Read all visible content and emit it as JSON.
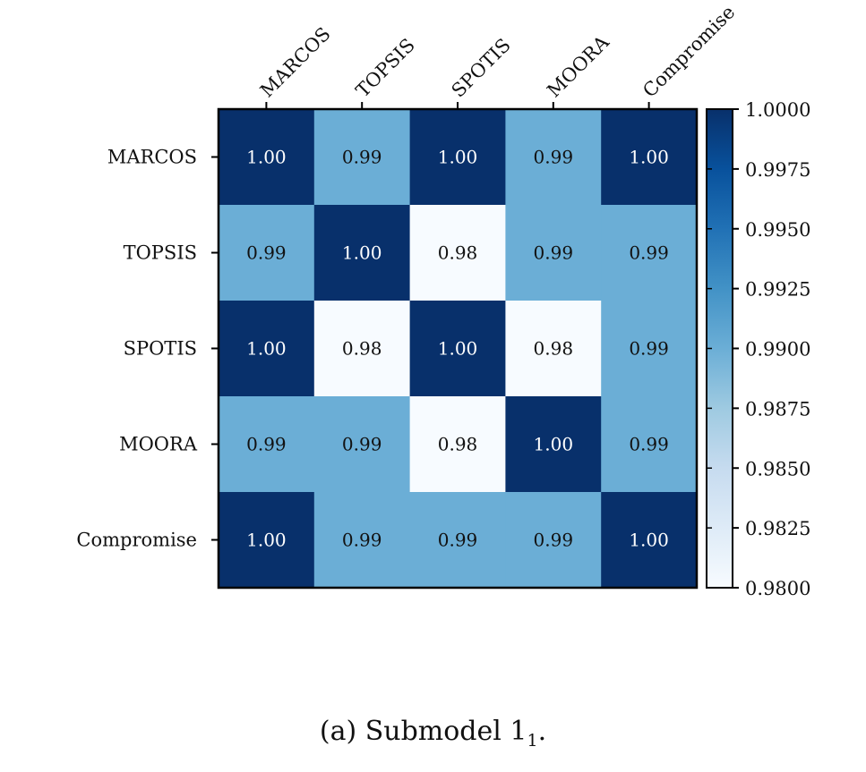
{
  "chart_data": {
    "type": "heatmap",
    "x_categories": [
      "MARCOS",
      "TOPSIS",
      "SPOTIS",
      "MOORA",
      "Compromise"
    ],
    "y_categories": [
      "MARCOS",
      "TOPSIS",
      "SPOTIS",
      "MOORA",
      "Compromise"
    ],
    "matrix": [
      [
        1.0,
        0.99,
        1.0,
        0.99,
        1.0
      ],
      [
        0.99,
        1.0,
        0.98,
        0.99,
        0.99
      ],
      [
        1.0,
        0.98,
        1.0,
        0.98,
        0.99
      ],
      [
        0.99,
        0.99,
        0.98,
        1.0,
        0.99
      ],
      [
        1.0,
        0.99,
        0.99,
        0.99,
        1.0
      ]
    ],
    "value_labels": [
      [
        "1.00",
        "0.99",
        "1.00",
        "0.99",
        "1.00"
      ],
      [
        "0.99",
        "1.00",
        "0.98",
        "0.99",
        "0.99"
      ],
      [
        "1.00",
        "0.98",
        "1.00",
        "0.98",
        "0.99"
      ],
      [
        "0.99",
        "0.99",
        "0.98",
        "1.00",
        "0.99"
      ],
      [
        "1.00",
        "0.99",
        "0.99",
        "0.99",
        "1.00"
      ]
    ],
    "colorbar": {
      "range": [
        0.98,
        1.0
      ],
      "ticks": [
        "1.0000",
        "0.9975",
        "0.9950",
        "0.9925",
        "0.9900",
        "0.9875",
        "0.9850",
        "0.9825",
        "0.9800"
      ],
      "tick_values": [
        1.0,
        0.9975,
        0.995,
        0.9925,
        0.99,
        0.9875,
        0.985,
        0.9825,
        0.98
      ],
      "colormap": "Blues",
      "low_color": "#f7fbff",
      "mid_color": "#6baed6",
      "high_color": "#08306b"
    },
    "grid": false,
    "legend": "colorbar-right"
  },
  "caption": {
    "prefix": "(a)",
    "text": "Submodel 1",
    "subscript": "1",
    "suffix": "."
  }
}
